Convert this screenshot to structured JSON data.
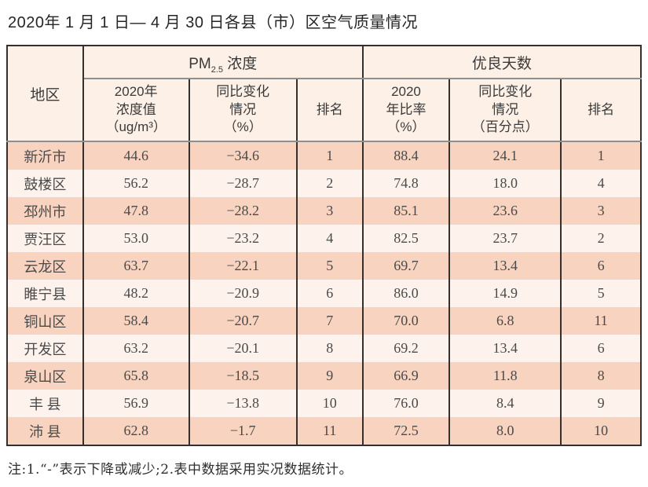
{
  "title": "2020年 1 月 1 日— 4 月 30 日各县（市）区空气质量情况",
  "note": "注:1.“-”表示下降或减少;2.表中数据采用实况数据统计。",
  "colors": {
    "row_band_salmon": "#f8d3bf",
    "row_band_cream": "#fdf3ec",
    "header_bg": "#fdf0e6",
    "border_dark": "#35302b",
    "header_rule_gray": "#8f8f8f",
    "text_dark": "#262626"
  },
  "table": {
    "header": {
      "region": "地区",
      "pm_group": {
        "prefix": "PM",
        "sub": "2.5",
        "suffix": " 浓度"
      },
      "good_group": "优良天数",
      "sub": [
        "2020年\n浓度值\n（ug/m³）",
        "同比变化\n情况\n（%）",
        "排名",
        "2020\n年比率\n（%）",
        "同比变化\n情况\n（百分点）",
        "排名"
      ]
    },
    "row_keys": [
      "region",
      "pm_value",
      "pm_change",
      "pm_rank",
      "good_ratio",
      "good_change",
      "good_rank"
    ],
    "rows": [
      {
        "region": "新沂市",
        "pm_value": "44.6",
        "pm_change": "−34.6",
        "pm_rank": "1",
        "good_ratio": "88.4",
        "good_change": "24.1",
        "good_rank": "1"
      },
      {
        "region": "鼓楼区",
        "pm_value": "56.2",
        "pm_change": "−28.7",
        "pm_rank": "2",
        "good_ratio": "74.8",
        "good_change": "18.0",
        "good_rank": "4"
      },
      {
        "region": "邳州市",
        "pm_value": "47.8",
        "pm_change": "−28.2",
        "pm_rank": "3",
        "good_ratio": "85.1",
        "good_change": "23.6",
        "good_rank": "3"
      },
      {
        "region": "贾汪区",
        "pm_value": "53.0",
        "pm_change": "−23.2",
        "pm_rank": "4",
        "good_ratio": "82.5",
        "good_change": "23.7",
        "good_rank": "2"
      },
      {
        "region": "云龙区",
        "pm_value": "63.7",
        "pm_change": "−22.1",
        "pm_rank": "5",
        "good_ratio": "69.7",
        "good_change": "13.4",
        "good_rank": "6"
      },
      {
        "region": "睢宁县",
        "pm_value": "48.2",
        "pm_change": "−20.9",
        "pm_rank": "6",
        "good_ratio": "86.0",
        "good_change": "14.9",
        "good_rank": "5"
      },
      {
        "region": "铜山区",
        "pm_value": "58.4",
        "pm_change": "−20.7",
        "pm_rank": "7",
        "good_ratio": "70.0",
        "good_change": "6.8",
        "good_rank": "11"
      },
      {
        "region": "开发区",
        "pm_value": "63.2",
        "pm_change": "−20.1",
        "pm_rank": "8",
        "good_ratio": "69.2",
        "good_change": "13.4",
        "good_rank": "6"
      },
      {
        "region": "泉山区",
        "pm_value": "65.8",
        "pm_change": "−18.5",
        "pm_rank": "9",
        "good_ratio": "66.9",
        "good_change": "11.8",
        "good_rank": "8"
      },
      {
        "region": "丰 县",
        "pm_value": "56.9",
        "pm_change": "−13.8",
        "pm_rank": "10",
        "good_ratio": "76.0",
        "good_change": "8.4",
        "good_rank": "9"
      },
      {
        "region": "沛 县",
        "pm_value": "62.8",
        "pm_change": "−1.7",
        "pm_rank": "11",
        "good_ratio": "72.5",
        "good_change": "8.0",
        "good_rank": "10"
      }
    ]
  }
}
